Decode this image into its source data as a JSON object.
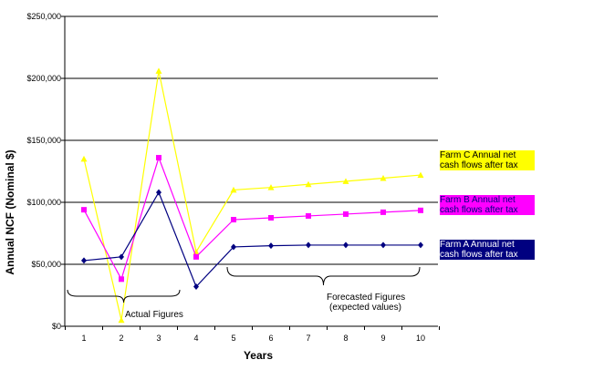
{
  "chart_data": {
    "type": "line",
    "xlabel": "Years",
    "ylabel": "Annual NCF (Nominal $)",
    "x": [
      1,
      2,
      3,
      4,
      5,
      6,
      7,
      8,
      9,
      10
    ],
    "ylim": [
      0,
      250000
    ],
    "yticks": [
      "$0",
      "$50,000",
      "$100,000",
      "$150,000",
      "$200,000",
      "$250,000"
    ],
    "grid": true,
    "legend_position": "right",
    "series": [
      {
        "name": "Farm C Annual net cash flows after tax",
        "color": "#ffff00",
        "marker": "triangle",
        "values": [
          135000,
          5000,
          206000,
          60000,
          110000,
          112000,
          114500,
          117000,
          119500,
          122000
        ]
      },
      {
        "name": "Farm B Annual net cash flows after tax",
        "color": "#ff00ff",
        "marker": "square",
        "values": [
          94000,
          38000,
          136000,
          56000,
          86000,
          87500,
          89000,
          90500,
          92000,
          93500
        ]
      },
      {
        "name": "Farm A Annual net cash flows after tax",
        "color": "#000080",
        "marker": "diamond",
        "values": [
          53000,
          56000,
          108000,
          32000,
          64000,
          65000,
          65500,
          65500,
          65500,
          65500
        ]
      }
    ],
    "annotations": [
      {
        "text": "Actual Figures",
        "x_from": 1,
        "x_to": 4
      },
      {
        "text": "Forecasted Figures\n(expected values)",
        "x_from": 5,
        "x_to": 10
      }
    ]
  }
}
